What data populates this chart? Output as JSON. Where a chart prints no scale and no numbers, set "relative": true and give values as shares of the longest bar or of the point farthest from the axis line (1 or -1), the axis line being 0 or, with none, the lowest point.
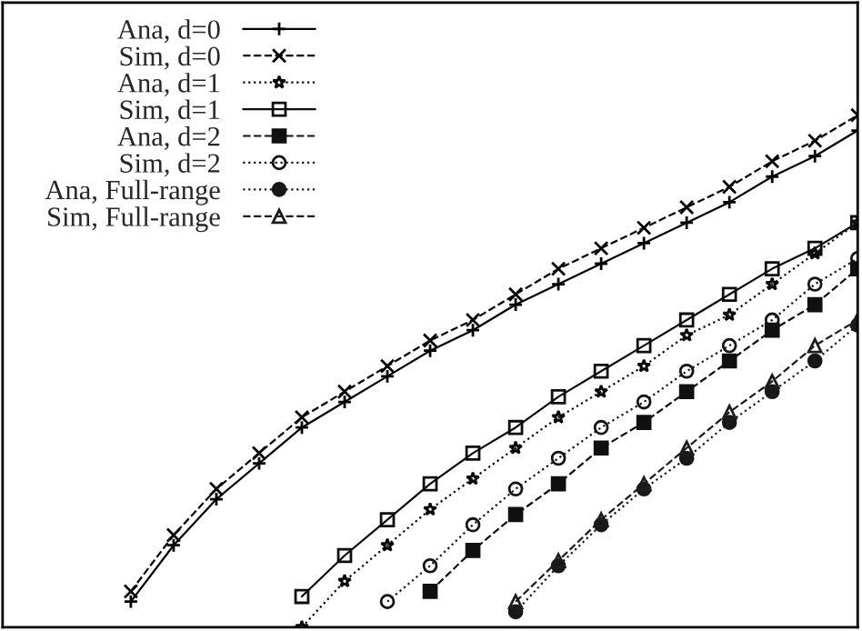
{
  "chart_data": {
    "type": "line",
    "relative": true,
    "legend": "top left",
    "grid": false,
    "categories": [
      null,
      null,
      null,
      null,
      null,
      null,
      null,
      null,
      null,
      null,
      null,
      null,
      null,
      null,
      null,
      null,
      null,
      null,
      null,
      null,
      null
    ],
    "series": [
      {
        "name": "Ana, d=0",
        "color": "#000000",
        "marker": "cross",
        "line_style": "solid",
        "values": [
          null,
          null,
          null,
          0.05,
          0.16,
          0.25,
          0.32,
          0.39,
          0.44,
          0.49,
          0.54,
          0.58,
          0.63,
          0.67,
          0.71,
          0.75,
          0.79,
          0.83,
          0.88,
          0.92,
          0.97
        ]
      },
      {
        "name": "Sim, d=0",
        "color": "#040404",
        "marker": "cross",
        "line_style": "dashed",
        "values": [
          null,
          null,
          null,
          0.07,
          0.18,
          0.27,
          0.34,
          0.41,
          0.46,
          0.51,
          0.56,
          0.6,
          0.65,
          0.7,
          0.74,
          0.78,
          0.82,
          0.86,
          0.91,
          0.95,
          1.0
        ]
      },
      {
        "name": "Ana, d=1",
        "color": "#080808",
        "marker": "star",
        "line_style": "dotted",
        "values": [
          null,
          null,
          null,
          null,
          null,
          null,
          null,
          0.0,
          0.09,
          0.16,
          0.23,
          0.29,
          0.35,
          0.41,
          0.46,
          0.51,
          0.57,
          0.61,
          0.67,
          0.73,
          0.79
        ]
      },
      {
        "name": "Sim, d=1",
        "color": "#0c0c0c",
        "marker": "square",
        "line_style": "solid",
        "values": [
          null,
          null,
          null,
          null,
          null,
          null,
          null,
          0.06,
          0.14,
          0.21,
          0.28,
          0.34,
          0.39,
          0.45,
          0.5,
          0.55,
          0.6,
          0.65,
          0.7,
          0.74,
          0.79
        ]
      },
      {
        "name": "Ana, d=2",
        "color": "#101010",
        "marker": "square",
        "line_style": "dashed",
        "values": [
          null,
          null,
          null,
          null,
          null,
          null,
          null,
          null,
          null,
          null,
          0.07,
          0.15,
          0.22,
          0.28,
          0.35,
          0.4,
          0.46,
          0.52,
          0.58,
          0.63,
          0.7
        ]
      },
      {
        "name": "Sim, d=2",
        "color": "#141414",
        "marker": "circle",
        "line_style": "dotted",
        "values": [
          null,
          null,
          null,
          null,
          null,
          null,
          null,
          null,
          null,
          0.05,
          0.12,
          0.2,
          0.27,
          0.33,
          0.39,
          0.44,
          0.5,
          0.55,
          0.6,
          0.67,
          0.72
        ]
      },
      {
        "name": "Ana, Full-range",
        "color": "#181818",
        "marker": "circle",
        "line_style": "dotted",
        "values": [
          null,
          null,
          null,
          null,
          null,
          null,
          null,
          null,
          null,
          null,
          null,
          null,
          0.03,
          0.12,
          0.2,
          0.27,
          0.33,
          0.4,
          0.46,
          0.52,
          0.59
        ]
      },
      {
        "name": "Sim, Full-range",
        "color": "#1c1c1c",
        "marker": "triangle",
        "line_style": "dashed",
        "values": [
          null,
          null,
          null,
          null,
          null,
          null,
          null,
          null,
          null,
          null,
          null,
          null,
          0.05,
          0.13,
          0.21,
          0.28,
          0.35,
          0.42,
          0.48,
          0.55,
          0.6
        ]
      }
    ]
  }
}
